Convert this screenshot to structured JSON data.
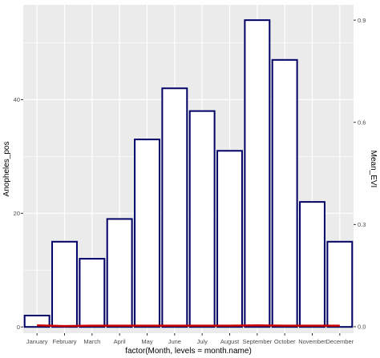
{
  "chart_data": {
    "type": "bar",
    "categories": [
      "January",
      "February",
      "March",
      "April",
      "May",
      "June",
      "July",
      "August",
      "September",
      "October",
      "November",
      "December"
    ],
    "series": [
      {
        "values": [
          2,
          15,
          12,
          19,
          33,
          42,
          38,
          31,
          54,
          47,
          22,
          15
        ]
      }
    ],
    "line_series": [
      {
        "values": [
          0.004,
          0.002,
          0.003,
          0.003,
          0.003,
          0.003,
          0.003,
          0.003,
          0.004,
          0.003,
          0.003,
          0.003
        ]
      }
    ],
    "xlabel": "factor(Month, levels = month.name)",
    "ylabel": "Anopheles_pos",
    "ylabel_right": "Mean_EVI",
    "ylim": [
      -1.1,
      56.7
    ],
    "y_ticks": [
      0,
      20,
      40
    ],
    "y_right_lim": [
      -0.019,
      0.945
    ],
    "y_right_ticks": [
      0.0,
      0.3,
      0.6,
      0.9
    ],
    "y_right_tick_labels": [
      "0.0",
      "0.3",
      "0.6",
      "0.9"
    ],
    "grid": true,
    "colors": {
      "panel_bg": "#ebebeb",
      "grid_major": "#ffffff",
      "bar_fill": "#ffffff",
      "bar_outline": "#000066",
      "line": "#cc0000"
    }
  }
}
